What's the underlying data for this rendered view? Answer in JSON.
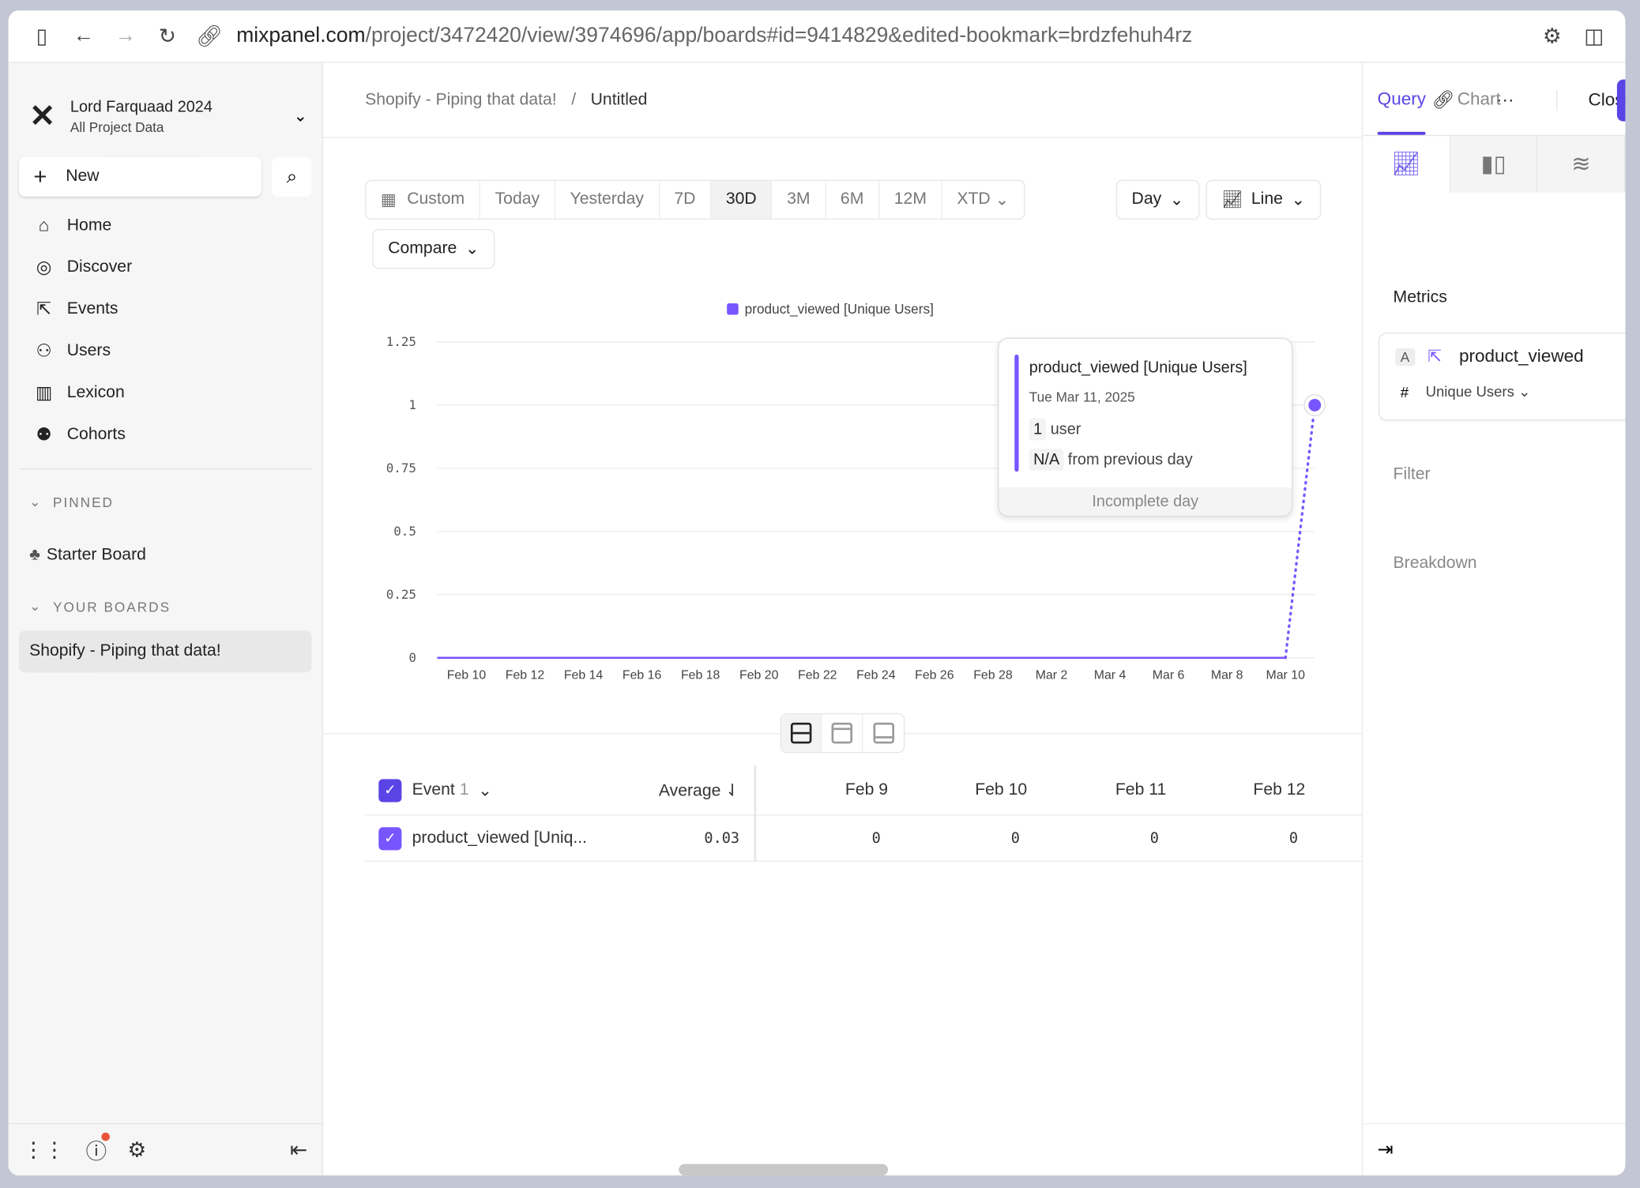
{
  "browser": {
    "url_host": "mixpanel.com",
    "url_path": "/project/3472420/view/3974696/app/boards#id=9414829&edited-bookmark=brdzfehuh4rz"
  },
  "project": {
    "name": "Lord Farquaad 2024",
    "subtitle": "All Project Data"
  },
  "sidebar": {
    "new_label": "New",
    "items": [
      {
        "label": "Home",
        "icon": "home-icon"
      },
      {
        "label": "Discover",
        "icon": "compass-icon"
      },
      {
        "label": "Events",
        "icon": "cursor-click-icon"
      },
      {
        "label": "Users",
        "icon": "users-icon"
      },
      {
        "label": "Lexicon",
        "icon": "book-icon"
      },
      {
        "label": "Cohorts",
        "icon": "cohorts-icon"
      }
    ],
    "pinned_label": "PINNED",
    "pinned": [
      "Starter Board"
    ],
    "boards_label": "YOUR BOARDS",
    "boards": [
      "Shopify - Piping that data!"
    ]
  },
  "breadcrumb": {
    "parent": "Shopify - Piping that data!",
    "separator": "/",
    "current": "Untitled"
  },
  "header": {
    "close_label": "Close"
  },
  "date_range": {
    "options": [
      "Custom",
      "Today",
      "Yesterday",
      "7D",
      "30D",
      "3M",
      "6M",
      "12M",
      "XTD"
    ],
    "selected": "30D"
  },
  "compare_label": "Compare",
  "interval": "Day",
  "chart_type": "Line",
  "colors": {
    "accent": "#5a44e6",
    "series": "#7856ff"
  },
  "chart_data": {
    "type": "line",
    "legend": [
      "product_viewed [Unique Users]"
    ],
    "legend_position": "top",
    "y_ticks": [
      "1.25",
      "1",
      "0.75",
      "0.5",
      "0.25",
      "0"
    ],
    "ylim": [
      0,
      1.25
    ],
    "grid": true,
    "x_ticks": [
      "Feb 10",
      "Feb 12",
      "Feb 14",
      "Feb 16",
      "Feb 18",
      "Feb 20",
      "Feb 22",
      "Feb 24",
      "Feb 26",
      "Feb 28",
      "Mar 2",
      "Mar 4",
      "Mar 6",
      "Mar 8",
      "Mar 10"
    ],
    "x": [
      "Feb 9",
      "Feb 10",
      "Feb 11",
      "Feb 12",
      "Feb 13",
      "Feb 14",
      "Feb 15",
      "Feb 16",
      "Feb 17",
      "Feb 18",
      "Feb 19",
      "Feb 20",
      "Feb 21",
      "Feb 22",
      "Feb 23",
      "Feb 24",
      "Feb 25",
      "Feb 26",
      "Feb 27",
      "Feb 28",
      "Mar 1",
      "Mar 2",
      "Mar 3",
      "Mar 4",
      "Mar 5",
      "Mar 6",
      "Mar 7",
      "Mar 8",
      "Mar 9",
      "Mar 10",
      "Mar 11"
    ],
    "series": [
      {
        "name": "product_viewed [Unique Users]",
        "values": [
          0,
          0,
          0,
          0,
          0,
          0,
          0,
          0,
          0,
          0,
          0,
          0,
          0,
          0,
          0,
          0,
          0,
          0,
          0,
          0,
          0,
          0,
          0,
          0,
          0,
          0,
          0,
          0,
          0,
          0,
          1
        ],
        "incomplete_last_point": true
      }
    ]
  },
  "tooltip": {
    "title": "product_viewed [Unique Users]",
    "date": "Tue Mar 11, 2025",
    "value": "1",
    "value_unit": "user",
    "change": "N/A",
    "change_label": "from previous day",
    "footer": "Incomplete day"
  },
  "table": {
    "event_header": "Event",
    "event_count": "1",
    "average_header": "Average",
    "date_headers": [
      "Feb 9",
      "Feb 10",
      "Feb 11",
      "Feb 12"
    ],
    "rows": [
      {
        "name": "product_viewed [Uniq...",
        "average": "0.03",
        "values": [
          "0",
          "0",
          "0",
          "0"
        ]
      }
    ]
  },
  "right_panel": {
    "tabs": [
      "Query",
      "Chart"
    ],
    "active_tab": "Query",
    "metrics_label": "Metrics",
    "metric_letter": "A",
    "metric_event": "product_viewed",
    "metric_measure": "Unique Users",
    "filter_label": "Filter",
    "breakdown_label": "Breakdown"
  }
}
